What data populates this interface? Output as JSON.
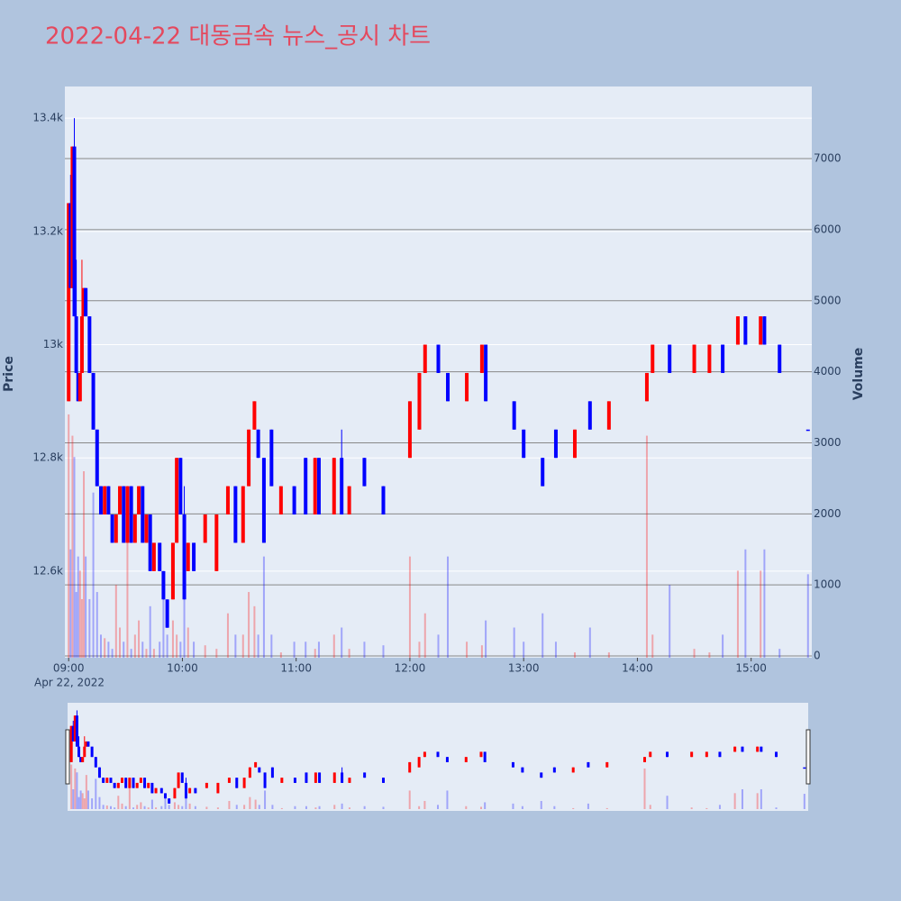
{
  "chart_data": {
    "type": "candlestick",
    "title": "2022-04-22 대동금속 뉴스_공시 차트",
    "y_title": "Price",
    "y2_title": "Volume",
    "x_date_label": "Apr 22, 2022",
    "increasing_color": "#ff0000",
    "decreasing_color": "#0000ff",
    "x": [
      "2022-04-22 09:00",
      "2022-04-22 09:01",
      "2022-04-22 09:02",
      "2022-04-22 09:03",
      "2022-04-22 09:04",
      "2022-04-22 09:05",
      "2022-04-22 09:06",
      "2022-04-22 09:07",
      "2022-04-22 09:08",
      "2022-04-22 09:09",
      "2022-04-22 09:11",
      "2022-04-22 09:13",
      "2022-04-22 09:15",
      "2022-04-22 09:17",
      "2022-04-22 09:19",
      "2022-04-22 09:21",
      "2022-04-22 09:23",
      "2022-04-22 09:25",
      "2022-04-22 09:27",
      "2022-04-22 09:29",
      "2022-04-22 09:31",
      "2022-04-22 09:33",
      "2022-04-22 09:35",
      "2022-04-22 09:37",
      "2022-04-22 09:39",
      "2022-04-22 09:41",
      "2022-04-22 09:43",
      "2022-04-22 09:45",
      "2022-04-22 09:48",
      "2022-04-22 09:50",
      "2022-04-22 09:52",
      "2022-04-22 09:55",
      "2022-04-22 09:57",
      "2022-04-22 09:59",
      "2022-04-22 10:01",
      "2022-04-22 10:03",
      "2022-04-22 10:06",
      "2022-04-22 10:12",
      "2022-04-22 10:18",
      "2022-04-22 10:24",
      "2022-04-22 10:28",
      "2022-04-22 10:32",
      "2022-04-22 10:35",
      "2022-04-22 10:38",
      "2022-04-22 10:40",
      "2022-04-22 10:43",
      "2022-04-22 10:47",
      "2022-04-22 10:52",
      "2022-04-22 10:59",
      "2022-04-22 11:05",
      "2022-04-22 11:10",
      "2022-04-22 11:12",
      "2022-04-22 11:20",
      "2022-04-22 11:24",
      "2022-04-22 11:28",
      "2022-04-22 11:36",
      "2022-04-22 11:46",
      "2022-04-22 12:00",
      "2022-04-22 12:05",
      "2022-04-22 12:08",
      "2022-04-22 12:15",
      "2022-04-22 12:20",
      "2022-04-22 12:30",
      "2022-04-22 12:38",
      "2022-04-22 12:40",
      "2022-04-22 12:55",
      "2022-04-22 13:00",
      "2022-04-22 13:10",
      "2022-04-22 13:17",
      "2022-04-22 13:27",
      "2022-04-22 13:35",
      "2022-04-22 13:45",
      "2022-04-22 14:05",
      "2022-04-22 14:08",
      "2022-04-22 14:17",
      "2022-04-22 14:30",
      "2022-04-22 14:38",
      "2022-04-22 14:45",
      "2022-04-22 14:53",
      "2022-04-22 14:57",
      "2022-04-22 15:05",
      "2022-04-22 15:07",
      "2022-04-22 15:15",
      "2022-04-22 15:30"
    ],
    "open": [
      12900,
      13250,
      13100,
      13350,
      13050,
      12950,
      12900,
      12950,
      13050,
      13100,
      13050,
      12950,
      12850,
      12750,
      12700,
      12750,
      12700,
      12650,
      12700,
      12750,
      12650,
      12750,
      12650,
      12700,
      12750,
      12650,
      12700,
      12600,
      12650,
      12600,
      12550,
      12550,
      12650,
      12800,
      12700,
      12600,
      12650,
      12650,
      12600,
      12700,
      12750,
      12650,
      12750,
      12850,
      12850,
      12800,
      12850,
      12700,
      12750,
      12800,
      12700,
      12800,
      12700,
      12800,
      12700,
      12800,
      12750,
      12800,
      12850,
      12950,
      13000,
      12950,
      12900,
      12950,
      13000,
      12900,
      12850,
      12800,
      12850,
      12800,
      12900,
      12850,
      12900,
      12950,
      13000,
      12950,
      12950,
      13000,
      13000,
      13050,
      13000,
      13050,
      13000,
      12850
    ],
    "high": [
      13250,
      13300,
      13350,
      13400,
      13150,
      12950,
      12950,
      13150,
      13100,
      13100,
      13050,
      12950,
      12850,
      12750,
      12750,
      12750,
      12700,
      12700,
      12750,
      12750,
      12750,
      12750,
      12700,
      12750,
      12750,
      12700,
      12700,
      12650,
      12650,
      12600,
      12550,
      12650,
      12800,
      12800,
      12750,
      12650,
      12650,
      12700,
      12700,
      12750,
      12750,
      12750,
      12850,
      12900,
      12850,
      12800,
      12850,
      12750,
      12750,
      12800,
      12800,
      12800,
      12800,
      12850,
      12750,
      12800,
      12750,
      12900,
      12950,
      13000,
      13000,
      12950,
      12950,
      13000,
      13000,
      12900,
      12850,
      12800,
      12850,
      12850,
      12900,
      12900,
      12950,
      13000,
      13000,
      13000,
      13000,
      13000,
      13050,
      13050,
      13050,
      13050,
      13000,
      12850
    ],
    "low": [
      12900,
      13100,
      13100,
      13050,
      12950,
      12900,
      12900,
      12950,
      13050,
      13050,
      12950,
      12850,
      12750,
      12700,
      12700,
      12700,
      12650,
      12650,
      12700,
      12650,
      12650,
      12650,
      12650,
      12700,
      12650,
      12650,
      12600,
      12600,
      12600,
      12550,
      12500,
      12550,
      12650,
      12700,
      12550,
      12600,
      12600,
      12650,
      12600,
      12700,
      12650,
      12650,
      12750,
      12850,
      12800,
      12650,
      12750,
      12700,
      12700,
      12700,
      12700,
      12700,
      12700,
      12700,
      12700,
      12750,
      12700,
      12800,
      12850,
      12950,
      12950,
      12900,
      12900,
      12950,
      12900,
      12850,
      12800,
      12750,
      12800,
      12800,
      12850,
      12850,
      12900,
      12950,
      12950,
      12950,
      12950,
      12950,
      13000,
      13000,
      13000,
      13000,
      12950,
      12850
    ],
    "close": [
      13250,
      13100,
      13350,
      13050,
      12950,
      12900,
      12950,
      13050,
      13100,
      13050,
      12950,
      12850,
      12750,
      12700,
      12750,
      12700,
      12650,
      12700,
      12750,
      12650,
      12750,
      12650,
      12700,
      12750,
      12650,
      12700,
      12600,
      12650,
      12600,
      12550,
      12500,
      12650,
      12800,
      12700,
      12550,
      12650,
      12600,
      12700,
      12700,
      12750,
      12650,
      12750,
      12850,
      12900,
      12800,
      12650,
      12750,
      12750,
      12700,
      12700,
      12800,
      12700,
      12800,
      12700,
      12750,
      12750,
      12700,
      12900,
      12950,
      13000,
      12950,
      12900,
      12950,
      13000,
      12900,
      12850,
      12800,
      12750,
      12800,
      12850,
      12850,
      12900,
      12950,
      13000,
      12950,
      13000,
      13000,
      12950,
      13050,
      13000,
      13050,
      13000,
      12950,
      12850
    ],
    "volume": [
      3400,
      1500,
      3100,
      2800,
      900,
      1400,
      1200,
      800,
      2600,
      1400,
      800,
      2300,
      900,
      300,
      250,
      200,
      100,
      1000,
      400,
      200,
      1750,
      100,
      300,
      500,
      200,
      100,
      700,
      100,
      200,
      900,
      300,
      500,
      300,
      200,
      1200,
      400,
      200,
      150,
      100,
      600,
      300,
      300,
      900,
      700,
      300,
      1400,
      300,
      50,
      200,
      200,
      100,
      200,
      300,
      400,
      100,
      200,
      150,
      1400,
      200,
      600,
      300,
      1400,
      200,
      150,
      500,
      400,
      200,
      600,
      200,
      50,
      400,
      50,
      3100,
      300,
      1000,
      100,
      50,
      300,
      1200,
      1500,
      1200,
      1500,
      100,
      1150
    ],
    "xlim": [
      "2022-04-22 08:58",
      "2022-04-22 15:32"
    ],
    "xticks": [
      {
        "value": "2022-04-22 09:00",
        "label": "09:00"
      },
      {
        "value": "2022-04-22 10:00",
        "label": "10:00"
      },
      {
        "value": "2022-04-22 11:00",
        "label": "11:00"
      },
      {
        "value": "2022-04-22 12:00",
        "label": "12:00"
      },
      {
        "value": "2022-04-22 13:00",
        "label": "13:00"
      },
      {
        "value": "2022-04-22 14:00",
        "label": "14:00"
      },
      {
        "value": "2022-04-22 15:00",
        "label": "15:00"
      }
    ],
    "ylim": [
      12447,
      13456
    ],
    "yticks": [
      {
        "value": 12600,
        "label": "12.6k"
      },
      {
        "value": 12800,
        "label": "12.8k"
      },
      {
        "value": 13000,
        "label": "13k"
      },
      {
        "value": 13200,
        "label": "13.2k"
      },
      {
        "value": 13400,
        "label": "13.4k"
      }
    ],
    "y2lim": [
      -25,
      8015
    ],
    "y2ticks": [
      0,
      1000,
      2000,
      3000,
      4000,
      5000,
      6000,
      7000
    ],
    "rangeslider": true
  }
}
